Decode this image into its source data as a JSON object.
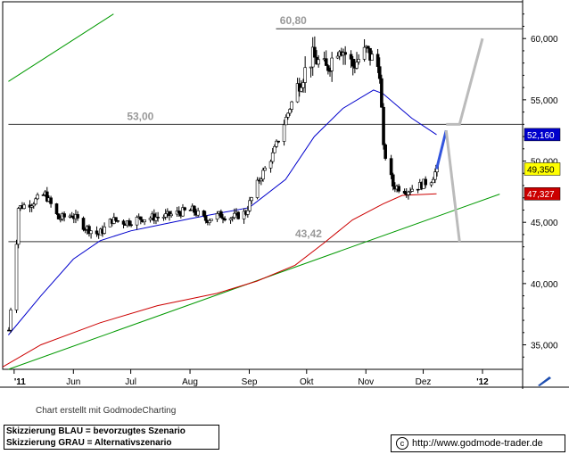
{
  "chart_data": {
    "type": "candlestick",
    "title": "",
    "xlabel": "",
    "ylabel": "",
    "ylim": [
      33,
      63
    ],
    "y_ticks": [
      "60,000",
      "55,000",
      "50,000",
      "45,000",
      "40,000",
      "35,000"
    ],
    "x_ticks": [
      "'11",
      "Jun",
      "Jul",
      "Aug",
      "Sep",
      "Okt",
      "Nov",
      "Dez",
      "'12"
    ],
    "grid": false,
    "price_path": [
      [
        "2011-04-28",
        36.2
      ],
      [
        "2011-05-02",
        43.5
      ],
      [
        "2011-05-03",
        46.2
      ],
      [
        "2011-05-10",
        46.6
      ],
      [
        "2011-05-17",
        47.3
      ],
      [
        "2011-05-24",
        45.3
      ],
      [
        "2011-05-31",
        45.6
      ],
      [
        "2011-06-07",
        44.6
      ],
      [
        "2011-06-14",
        44.0
      ],
      [
        "2011-06-21",
        45.2
      ],
      [
        "2011-06-28",
        45.0
      ],
      [
        "2011-07-05",
        45.3
      ],
      [
        "2011-07-12",
        45.4
      ],
      [
        "2011-07-19",
        45.5
      ],
      [
        "2011-07-26",
        45.8
      ],
      [
        "2011-08-02",
        46.0
      ],
      [
        "2011-08-09",
        45.2
      ],
      [
        "2011-08-16",
        45.6
      ],
      [
        "2011-08-23",
        45.4
      ],
      [
        "2011-08-30",
        45.8
      ],
      [
        "2011-09-06",
        48.5
      ],
      [
        "2011-09-13",
        50.5
      ],
      [
        "2011-09-20",
        53.5
      ],
      [
        "2011-09-27",
        56.5
      ],
      [
        "2011-10-04",
        58.5
      ],
      [
        "2011-10-11",
        57.5
      ],
      [
        "2011-10-18",
        59.5
      ],
      [
        "2011-10-25",
        57.8
      ],
      [
        "2011-11-01",
        59.0
      ],
      [
        "2011-11-08",
        57.5
      ],
      [
        "2011-11-10",
        51.0
      ],
      [
        "2011-11-15",
        48.0
      ],
      [
        "2011-11-22",
        47.6
      ],
      [
        "2011-11-29",
        48.0
      ],
      [
        "2011-12-05",
        48.5
      ],
      [
        "2011-12-08",
        49.35
      ]
    ],
    "series": [
      {
        "name": "",
        "color": "#0000cc",
        "values": [
          [
            "2011-04-28",
            35.8
          ],
          [
            "2011-05-15",
            39.0
          ],
          [
            "2011-06-01",
            42.0
          ],
          [
            "2011-06-15",
            43.5
          ],
          [
            "2011-07-01",
            44.3
          ],
          [
            "2011-08-01",
            45.3
          ],
          [
            "2011-09-01",
            46.2
          ],
          [
            "2011-09-20",
            48.5
          ],
          [
            "2011-10-05",
            52.0
          ],
          [
            "2011-10-20",
            54.3
          ],
          [
            "2011-11-05",
            55.8
          ],
          [
            "2011-11-10",
            55.5
          ],
          [
            "2011-11-25",
            53.5
          ],
          [
            "2011-12-08",
            52.16
          ]
        ]
      },
      {
        "name": "",
        "color": "#cc0000",
        "values": [
          [
            "2011-04-25",
            33.2
          ],
          [
            "2011-05-15",
            35.0
          ],
          [
            "2011-06-15",
            36.8
          ],
          [
            "2011-07-15",
            38.2
          ],
          [
            "2011-08-15",
            39.2
          ],
          [
            "2011-09-05",
            40.2
          ],
          [
            "2011-09-25",
            41.5
          ],
          [
            "2011-10-10",
            43.3
          ],
          [
            "2011-10-25",
            45.2
          ],
          [
            "2011-11-10",
            46.5
          ],
          [
            "2011-11-20",
            47.2
          ],
          [
            "2011-12-08",
            47.327
          ]
        ]
      }
    ],
    "trendlines": [
      {
        "color": "#009900",
        "points": [
          [
            "2011-04-28",
            56.5
          ],
          [
            "2011-06-22",
            62.0
          ]
        ]
      },
      {
        "color": "#009900",
        "points": [
          [
            "2011-04-28",
            33.0
          ],
          [
            "2012-01-10",
            47.3
          ]
        ]
      }
    ],
    "levels": [
      {
        "value": 60.8,
        "label": "60,80"
      },
      {
        "value": 53.0,
        "label": "53,00"
      },
      {
        "value": 43.42,
        "label": "43,42"
      }
    ],
    "price_tags": [
      {
        "value": 52.16,
        "label": "52,160",
        "color": "#0000cc",
        "text_color": "#ffffff"
      },
      {
        "value": 49.35,
        "label": "49,350",
        "color": "#ffff00",
        "text_color": "#000000"
      },
      {
        "value": 47.327,
        "label": "47,327",
        "color": "#cc0000",
        "text_color": "#ffffff"
      }
    ],
    "scenario_blue": [
      [
        "2011-12-08",
        49.35
      ],
      [
        "2011-12-13",
        52.5
      ]
    ],
    "scenario_gray": [
      [
        "2011-12-13",
        52.5
      ],
      [
        "2011-12-20",
        43.42
      ],
      [
        "2011-12-13",
        53.0
      ],
      [
        "2011-12-20",
        53.0
      ],
      [
        "2012-01-01",
        60.0
      ]
    ]
  },
  "footer": {
    "credit": "Chart erstellt mit GodmodeCharting",
    "legend_blue": "Skizzierung BLAU = bevorzugtes Szenario",
    "legend_gray": "Skizzierung GRAU = Alternativszenario",
    "url": "http://www.godmode-trader.de",
    "copyright_symbol": "c"
  }
}
